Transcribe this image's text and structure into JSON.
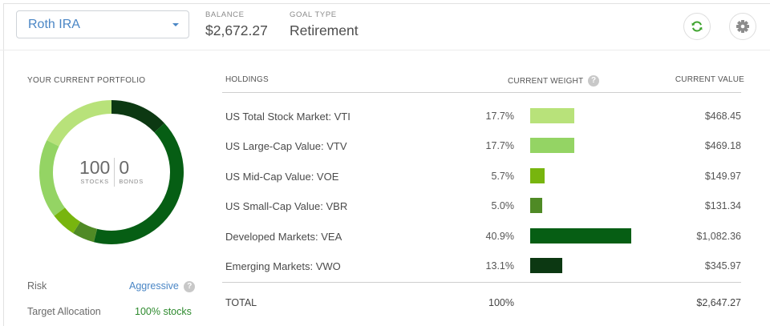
{
  "header": {
    "account_select": {
      "value": "Roth IRA"
    },
    "balance": {
      "caption": "BALANCE",
      "value": "$2,672.27"
    },
    "goal_type": {
      "caption": "GOAL TYPE",
      "value": "Retirement"
    },
    "buttons": {
      "refresh": "refresh-icon",
      "settings": "gear-icon"
    }
  },
  "portfolio": {
    "title": "YOUR CURRENT PORTFOLIO",
    "stocks_value": "100",
    "stocks_label": "STOCKS",
    "bonds_value": "0",
    "bonds_label": "BONDS",
    "risk_label": "Risk",
    "risk_value": "Aggressive",
    "risk_help": "?",
    "target_label": "Target Allocation",
    "target_value": "100% stocks"
  },
  "holdings": {
    "headers": {
      "holdings": "HOLDINGS",
      "weight": "CURRENT WEIGHT",
      "weight_help": "?",
      "value": "CURRENT VALUE"
    },
    "rows": [
      {
        "name": "US Total Stock Market: VTI",
        "weight": "17.7%",
        "weight_num": 17.7,
        "value": "$468.45",
        "color": "#b8e27a"
      },
      {
        "name": "US Large-Cap Value: VTV",
        "weight": "17.7%",
        "weight_num": 17.7,
        "value": "$469.18",
        "color": "#94d464"
      },
      {
        "name": "US Mid-Cap Value: VOE",
        "weight": "5.7%",
        "weight_num": 5.7,
        "value": "$149.97",
        "color": "#78b50e"
      },
      {
        "name": "US Small-Cap Value: VBR",
        "weight": "5.0%",
        "weight_num": 5.0,
        "value": "$131.34",
        "color": "#4f8a25"
      },
      {
        "name": "Developed Markets: VEA",
        "weight": "40.9%",
        "weight_num": 40.9,
        "value": "$1,082.36",
        "color": "#065e14"
      },
      {
        "name": "Emerging Markets: VWO",
        "weight": "13.1%",
        "weight_num": 13.1,
        "value": "$345.97",
        "color": "#0c3812"
      }
    ],
    "total": {
      "label": "TOTAL",
      "weight": "100%",
      "value": "$2,647.27"
    }
  },
  "colors": {
    "accent_blue": "#4a86c5",
    "accent_green": "#2e8a2e",
    "refresh_green": "#3ea32e"
  }
}
